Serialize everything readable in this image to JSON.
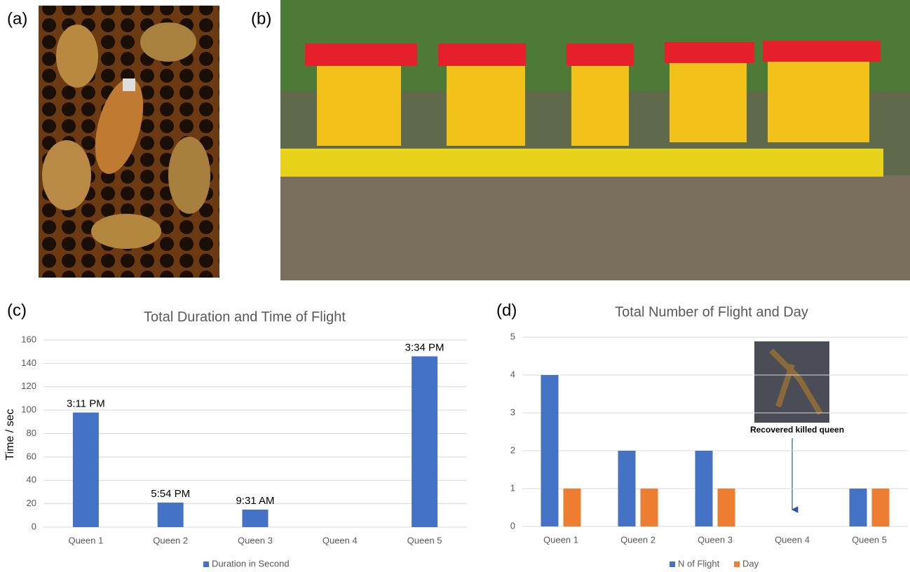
{
  "panel_labels": [
    "(a)",
    "(b)"
  ],
  "chart_data": [
    {
      "type": "bar",
      "panel_label": "(c)",
      "title": "Total Duration and Time of Flight",
      "y_label": "Time / sec",
      "categories": [
        "Queen 1",
        "Queen 2",
        "Queen 3",
        "Queen 4",
        "Queen 5"
      ],
      "series": [
        {
          "name": "Duration in Second",
          "color": "#4472c4",
          "values": [
            98,
            21,
            15,
            0,
            146
          ]
        }
      ],
      "bar_labels": [
        "3:11 PM",
        "5:54 PM",
        "9:31 AM",
        null,
        "3:34 PM"
      ],
      "ylim": [
        0,
        160
      ],
      "yticks": [
        0,
        20,
        40,
        60,
        80,
        100,
        120,
        140,
        160
      ],
      "grid": true,
      "legend": "bottom"
    },
    {
      "type": "bar",
      "panel_label": "(d)",
      "title": "Total Number of Flight  and Day",
      "categories": [
        "Queen 1",
        "Queen 2",
        "Queen 3",
        "Queen 4",
        "Queen 5"
      ],
      "series": [
        {
          "name": "N of Flight",
          "color": "#4472c4",
          "values": [
            4,
            2,
            2,
            0,
            1
          ]
        },
        {
          "name": "Day",
          "color": "#ed7d31",
          "values": [
            1,
            1,
            1,
            0,
            1
          ]
        }
      ],
      "annotation": "Recovered killed queen",
      "ylim": [
        0,
        5
      ],
      "yticks": [
        0,
        1,
        2,
        3,
        4,
        5
      ],
      "grid": true,
      "legend": "bottom"
    }
  ]
}
